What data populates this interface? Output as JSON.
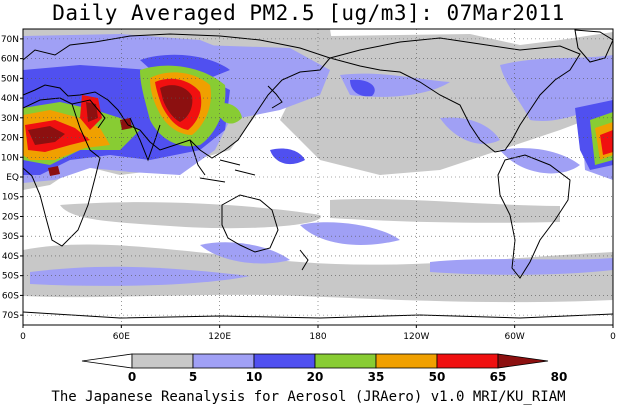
{
  "title": "Daily Averaged PM2.5 [ug/m3]: 07Mar2011",
  "credit": "The Japanese Reanalysis for Aerosol (JRAero) v1.0 MRI/KU_RIAM",
  "map": {
    "projection": "equirectangular",
    "center_longitude": 180,
    "lon_range": [
      0,
      360
    ],
    "lat_range": [
      -75,
      75
    ],
    "background": "#ffffff",
    "coastline_color": "#000000",
    "grid": "dotted"
  },
  "x_ticks": [
    {
      "lon": 0,
      "label": "0"
    },
    {
      "lon": 60,
      "label": "60E"
    },
    {
      "lon": 120,
      "label": "120E"
    },
    {
      "lon": 180,
      "label": "180"
    },
    {
      "lon": 240,
      "label": "120W"
    },
    {
      "lon": 300,
      "label": "60W"
    },
    {
      "lon": 360,
      "label": "0"
    }
  ],
  "y_ticks": [
    {
      "lat": 70,
      "label": "70N"
    },
    {
      "lat": 60,
      "label": "60N"
    },
    {
      "lat": 50,
      "label": "50N"
    },
    {
      "lat": 40,
      "label": "40N"
    },
    {
      "lat": 30,
      "label": "30N"
    },
    {
      "lat": 20,
      "label": "20N"
    },
    {
      "lat": 10,
      "label": "10N"
    },
    {
      "lat": 0,
      "label": "EQ"
    },
    {
      "lat": -10,
      "label": "10S"
    },
    {
      "lat": -20,
      "label": "20S"
    },
    {
      "lat": -30,
      "label": "30S"
    },
    {
      "lat": -40,
      "label": "40S"
    },
    {
      "lat": -50,
      "label": "50S"
    },
    {
      "lat": -60,
      "label": "60S"
    },
    {
      "lat": -70,
      "label": "70S"
    }
  ],
  "legend": {
    "bins": [
      {
        "label": "0",
        "color": "#ffffff"
      },
      {
        "label": "5",
        "color": "#c8c8c8"
      },
      {
        "label": "10",
        "color": "#a0a0f5"
      },
      {
        "label": "20",
        "color": "#5050f0"
      },
      {
        "label": "35",
        "color": "#88cc33"
      },
      {
        "label": "50",
        "color": "#f0a000"
      },
      {
        "label": "65",
        "color": "#f01010"
      },
      {
        "label": "80",
        "color": "#8c1010"
      }
    ]
  }
}
